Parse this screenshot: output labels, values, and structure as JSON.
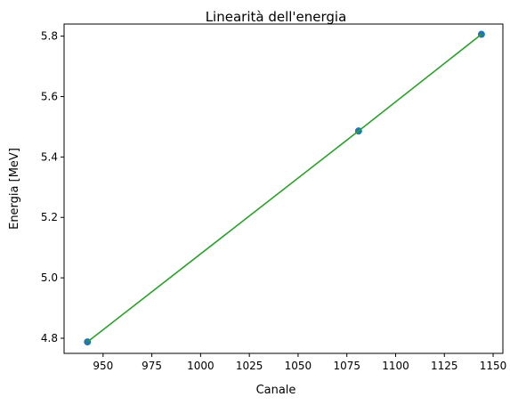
{
  "chart_data": {
    "type": "scatter",
    "title": "Linearità dell'energia",
    "xlabel": "Canale",
    "ylabel": "Energia [MeV]",
    "xlim": [
      930,
      1155
    ],
    "ylim": [
      4.75,
      5.84
    ],
    "x_ticks": [
      950,
      975,
      1000,
      1025,
      1050,
      1075,
      1100,
      1125,
      1150
    ],
    "y_ticks": [
      4.8,
      5.0,
      5.2,
      5.4,
      5.6,
      5.8
    ],
    "grid": false,
    "legend": "none",
    "series": [
      {
        "kind": "scatter",
        "color": "#1f77b4",
        "points": [
          {
            "x": 942,
            "y": 4.788
          },
          {
            "x": 1081,
            "y": 5.486
          },
          {
            "x": 1144,
            "y": 5.806
          }
        ]
      },
      {
        "kind": "line",
        "color": "#2ca02c",
        "points": [
          {
            "x": 942,
            "y": 4.788
          },
          {
            "x": 1081,
            "y": 5.486
          },
          {
            "x": 1144,
            "y": 5.806
          }
        ]
      }
    ]
  }
}
